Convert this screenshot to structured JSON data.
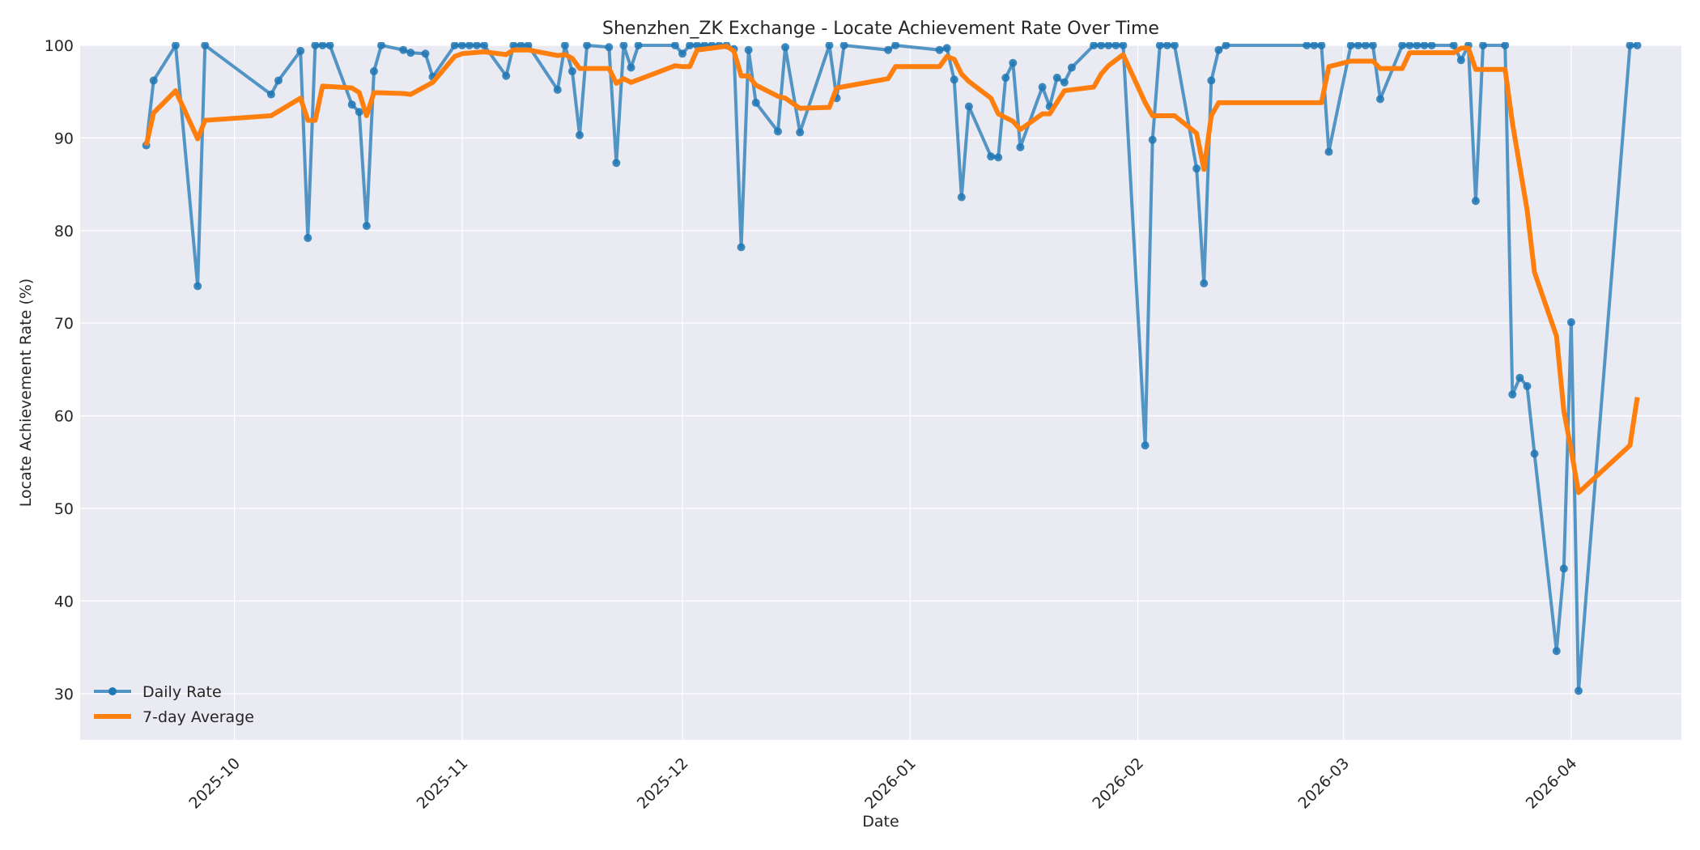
{
  "chart_data": {
    "type": "line",
    "title": "Shenzhen_ZK Exchange - Locate Achievement Rate Over Time",
    "xlabel": "Date",
    "ylabel": "Locate Achievement Rate (%)",
    "xlim": [
      "2025-09-10",
      "2026-04-16"
    ],
    "ylim": [
      25,
      100
    ],
    "grid": true,
    "legend_position": "lower left",
    "x_ticks": [
      "2025-10-01",
      "2025-11-01",
      "2025-12-01",
      "2026-01-01",
      "2026-02-01",
      "2026-03-01",
      "2026-04-01"
    ],
    "x_tick_labels": [
      "2025-10",
      "2025-11",
      "2025-12",
      "2026-01",
      "2026-02",
      "2026-03",
      "2026-04"
    ],
    "y_ticks": [
      30,
      40,
      50,
      60,
      70,
      80,
      90,
      100
    ],
    "series": [
      {
        "name": "Daily Rate",
        "color": "#1f77b4",
        "style": "line-markers",
        "points": [
          [
            "2025-09-19",
            89.2
          ],
          [
            "2025-09-20",
            96.2
          ],
          [
            "2025-09-23",
            100
          ],
          [
            "2025-09-26",
            74.0
          ],
          [
            "2025-09-27",
            100
          ],
          [
            "2025-10-06",
            94.7
          ],
          [
            "2025-10-07",
            96.2
          ],
          [
            "2025-10-10",
            99.4
          ],
          [
            "2025-10-11",
            79.2
          ],
          [
            "2025-10-12",
            100
          ],
          [
            "2025-10-13",
            100
          ],
          [
            "2025-10-14",
            100
          ],
          [
            "2025-10-17",
            93.6
          ],
          [
            "2025-10-18",
            92.8
          ],
          [
            "2025-10-19",
            80.5
          ],
          [
            "2025-10-20",
            97.2
          ],
          [
            "2025-10-21",
            100
          ],
          [
            "2025-10-24",
            99.5
          ],
          [
            "2025-10-25",
            99.2
          ],
          [
            "2025-10-27",
            99.1
          ],
          [
            "2025-10-28",
            96.6
          ],
          [
            "2025-10-31",
            100
          ],
          [
            "2025-11-01",
            100
          ],
          [
            "2025-11-02",
            100
          ],
          [
            "2025-11-03",
            100
          ],
          [
            "2025-11-04",
            100
          ],
          [
            "2025-11-07",
            96.7
          ],
          [
            "2025-11-08",
            100
          ],
          [
            "2025-11-09",
            100
          ],
          [
            "2025-11-10",
            100
          ],
          [
            "2025-11-14",
            95.2
          ],
          [
            "2025-11-15",
            100
          ],
          [
            "2025-11-16",
            97.2
          ],
          [
            "2025-11-17",
            90.3
          ],
          [
            "2025-11-18",
            100
          ],
          [
            "2025-11-21",
            99.8
          ],
          [
            "2025-11-22",
            87.3
          ],
          [
            "2025-11-23",
            100
          ],
          [
            "2025-11-24",
            97.6
          ],
          [
            "2025-11-25",
            100
          ],
          [
            "2025-11-30",
            100
          ],
          [
            "2025-12-01",
            99.1
          ],
          [
            "2025-12-02",
            100
          ],
          [
            "2025-12-03",
            100
          ],
          [
            "2025-12-04",
            100
          ],
          [
            "2025-12-05",
            100
          ],
          [
            "2025-12-06",
            100
          ],
          [
            "2025-12-07",
            100
          ],
          [
            "2025-12-08",
            99.6
          ],
          [
            "2025-12-09",
            78.2
          ],
          [
            "2025-12-10",
            99.5
          ],
          [
            "2025-12-11",
            93.8
          ],
          [
            "2025-12-14",
            90.7
          ],
          [
            "2025-12-15",
            99.8
          ],
          [
            "2025-12-17",
            90.6
          ],
          [
            "2025-12-21",
            100
          ],
          [
            "2025-12-22",
            94.3
          ],
          [
            "2025-12-23",
            100
          ],
          [
            "2025-12-29",
            99.5
          ],
          [
            "2025-12-30",
            100
          ],
          [
            "2026-01-05",
            99.5
          ],
          [
            "2026-01-06",
            99.7
          ],
          [
            "2026-01-07",
            96.3
          ],
          [
            "2026-01-08",
            83.6
          ],
          [
            "2026-01-09",
            93.4
          ],
          [
            "2026-01-12",
            88.0
          ],
          [
            "2026-01-13",
            87.9
          ],
          [
            "2026-01-14",
            96.5
          ],
          [
            "2026-01-15",
            98.1
          ],
          [
            "2026-01-16",
            89.0
          ],
          [
            "2026-01-19",
            95.5
          ],
          [
            "2026-01-20",
            93.4
          ],
          [
            "2026-01-21",
            96.5
          ],
          [
            "2026-01-22",
            96.0
          ],
          [
            "2026-01-23",
            97.6
          ],
          [
            "2026-01-26",
            100
          ],
          [
            "2026-01-27",
            100
          ],
          [
            "2026-01-28",
            100
          ],
          [
            "2026-01-29",
            100
          ],
          [
            "2026-01-30",
            100
          ],
          [
            "2026-02-02",
            56.8
          ],
          [
            "2026-02-03",
            89.8
          ],
          [
            "2026-02-04",
            100
          ],
          [
            "2026-02-05",
            100
          ],
          [
            "2026-02-06",
            100
          ],
          [
            "2026-02-09",
            86.7
          ],
          [
            "2026-02-10",
            74.3
          ],
          [
            "2026-02-11",
            96.2
          ],
          [
            "2026-02-12",
            99.5
          ],
          [
            "2026-02-13",
            100
          ],
          [
            "2026-02-24",
            100
          ],
          [
            "2026-02-25",
            100
          ],
          [
            "2026-02-26",
            100
          ],
          [
            "2026-02-27",
            88.5
          ],
          [
            "2026-03-02",
            100
          ],
          [
            "2026-03-03",
            100
          ],
          [
            "2026-03-04",
            100
          ],
          [
            "2026-03-05",
            100
          ],
          [
            "2026-03-06",
            94.2
          ],
          [
            "2026-03-09",
            100
          ],
          [
            "2026-03-10",
            100
          ],
          [
            "2026-03-11",
            100
          ],
          [
            "2026-03-12",
            100
          ],
          [
            "2026-03-13",
            100
          ],
          [
            "2026-03-16",
            100
          ],
          [
            "2026-03-17",
            98.4
          ],
          [
            "2026-03-18",
            100
          ],
          [
            "2026-03-19",
            83.2
          ],
          [
            "2026-03-20",
            100
          ],
          [
            "2026-03-23",
            100
          ],
          [
            "2026-03-24",
            62.3
          ],
          [
            "2026-03-25",
            64.1
          ],
          [
            "2026-03-26",
            63.2
          ],
          [
            "2026-03-27",
            55.9
          ],
          [
            "2026-03-30",
            34.6
          ],
          [
            "2026-03-31",
            43.5
          ],
          [
            "2026-04-01",
            70.1
          ],
          [
            "2026-04-02",
            30.3
          ],
          [
            "2026-04-09",
            100
          ],
          [
            "2026-04-10",
            100
          ]
        ]
      },
      {
        "name": "7-day Average",
        "color": "#ff7f0e",
        "style": "line",
        "points": [
          [
            "2025-09-19",
            89.2
          ],
          [
            "2025-09-20",
            92.7
          ],
          [
            "2025-09-23",
            95.1
          ],
          [
            "2025-09-26",
            89.9
          ],
          [
            "2025-09-27",
            91.9
          ],
          [
            "2025-10-06",
            92.4
          ],
          [
            "2025-10-10",
            94.3
          ],
          [
            "2025-10-11",
            91.9
          ],
          [
            "2025-10-12",
            91.9
          ],
          [
            "2025-10-13",
            95.6
          ],
          [
            "2025-10-17",
            95.4
          ],
          [
            "2025-10-18",
            94.9
          ],
          [
            "2025-10-19",
            92.4
          ],
          [
            "2025-10-20",
            94.9
          ],
          [
            "2025-10-24",
            94.8
          ],
          [
            "2025-10-25",
            94.7
          ],
          [
            "2025-10-28",
            96.0
          ],
          [
            "2025-10-31",
            98.8
          ],
          [
            "2025-11-01",
            99.1
          ],
          [
            "2025-11-04",
            99.3
          ],
          [
            "2025-11-07",
            99.0
          ],
          [
            "2025-11-08",
            99.5
          ],
          [
            "2025-11-10",
            99.5
          ],
          [
            "2025-11-14",
            98.9
          ],
          [
            "2025-11-15",
            99.0
          ],
          [
            "2025-11-16",
            98.6
          ],
          [
            "2025-11-17",
            97.5
          ],
          [
            "2025-11-21",
            97.5
          ],
          [
            "2025-11-22",
            95.9
          ],
          [
            "2025-11-23",
            96.4
          ],
          [
            "2025-11-24",
            96.0
          ],
          [
            "2025-11-30",
            97.8
          ],
          [
            "2025-12-01",
            97.7
          ],
          [
            "2025-12-02",
            97.7
          ],
          [
            "2025-12-03",
            99.5
          ],
          [
            "2025-12-07",
            99.9
          ],
          [
            "2025-12-08",
            99.4
          ],
          [
            "2025-12-09",
            96.7
          ],
          [
            "2025-12-10",
            96.7
          ],
          [
            "2025-12-11",
            95.7
          ],
          [
            "2025-12-14",
            94.5
          ],
          [
            "2025-12-15",
            94.3
          ],
          [
            "2025-12-17",
            93.2
          ],
          [
            "2025-12-21",
            93.3
          ],
          [
            "2025-12-22",
            95.4
          ],
          [
            "2025-12-29",
            96.4
          ],
          [
            "2025-12-30",
            97.7
          ],
          [
            "2026-01-05",
            97.7
          ],
          [
            "2026-01-06",
            98.8
          ],
          [
            "2026-01-07",
            98.5
          ],
          [
            "2026-01-08",
            96.9
          ],
          [
            "2026-01-09",
            96.1
          ],
          [
            "2026-01-12",
            94.3
          ],
          [
            "2026-01-13",
            92.6
          ],
          [
            "2026-01-15",
            91.8
          ],
          [
            "2026-01-16",
            90.9
          ],
          [
            "2026-01-19",
            92.6
          ],
          [
            "2026-01-20",
            92.6
          ],
          [
            "2026-01-22",
            95.1
          ],
          [
            "2026-01-26",
            95.5
          ],
          [
            "2026-01-27",
            96.9
          ],
          [
            "2026-01-28",
            97.8
          ],
          [
            "2026-01-30",
            99.0
          ],
          [
            "2026-02-02",
            93.8
          ],
          [
            "2026-02-03",
            92.4
          ],
          [
            "2026-02-06",
            92.4
          ],
          [
            "2026-02-09",
            90.5
          ],
          [
            "2026-02-10",
            86.6
          ],
          [
            "2026-02-11",
            92.4
          ],
          [
            "2026-02-12",
            93.8
          ],
          [
            "2026-02-13",
            93.8
          ],
          [
            "2026-02-26",
            93.8
          ],
          [
            "2026-02-27",
            97.7
          ],
          [
            "2026-03-02",
            98.3
          ],
          [
            "2026-03-05",
            98.3
          ],
          [
            "2026-03-06",
            97.5
          ],
          [
            "2026-03-09",
            97.5
          ],
          [
            "2026-03-10",
            99.2
          ],
          [
            "2026-03-16",
            99.2
          ],
          [
            "2026-03-17",
            99.7
          ],
          [
            "2026-03-18",
            99.7
          ],
          [
            "2026-03-19",
            97.4
          ],
          [
            "2026-03-23",
            97.4
          ],
          [
            "2026-03-24",
            91.6
          ],
          [
            "2026-03-26",
            82.2
          ],
          [
            "2026-03-27",
            75.5
          ],
          [
            "2026-03-30",
            68.6
          ],
          [
            "2026-03-31",
            60.5
          ],
          [
            "2026-04-01",
            56.3
          ],
          [
            "2026-04-02",
            51.7
          ],
          [
            "2026-04-09",
            56.8
          ],
          [
            "2026-04-10",
            62.0
          ]
        ]
      }
    ]
  }
}
